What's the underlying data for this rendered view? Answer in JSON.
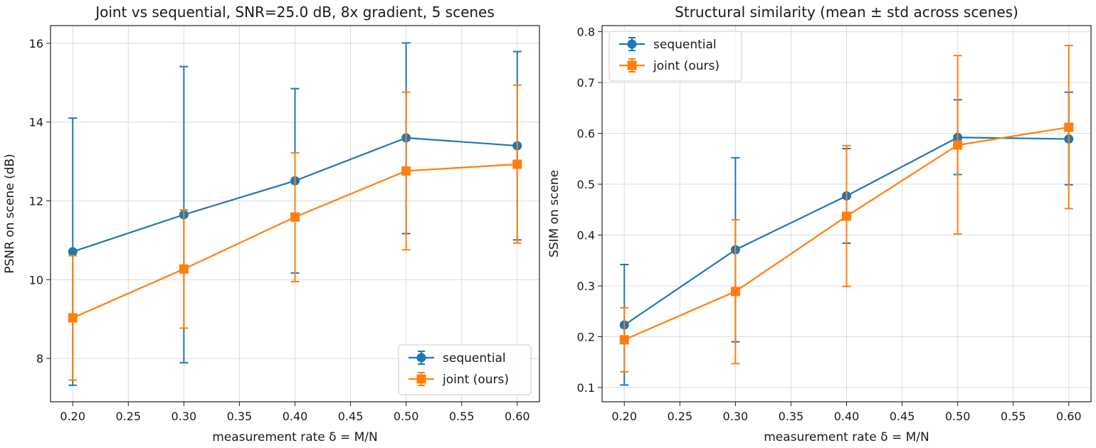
{
  "chart_data": [
    {
      "type": "line",
      "title": "Joint vs sequential, SNR=25.0 dB, 8x gradient, 5 scenes",
      "xlabel": "measurement rate δ = M/N",
      "ylabel": "PSNR on scene (dB)",
      "xlim": [
        0.18,
        0.62
      ],
      "ylim": [
        6.9,
        16.45
      ],
      "xticks": [
        "0.20",
        "0.25",
        "0.30",
        "0.35",
        "0.40",
        "0.45",
        "0.50",
        "0.55",
        "0.60"
      ],
      "yticks": [
        "8",
        "10",
        "12",
        "14",
        "16"
      ],
      "grid": true,
      "legend_position": "lower right",
      "x": [
        0.2,
        0.3,
        0.4,
        0.5,
        0.6
      ],
      "series": [
        {
          "name": "sequential",
          "color": "#1f77b4",
          "marker": "circle",
          "values": [
            10.71,
            11.65,
            12.51,
            13.6,
            13.4
          ],
          "err_low": [
            7.32,
            7.89,
            10.17,
            11.17,
            11.01
          ],
          "err_high": [
            14.1,
            15.41,
            14.85,
            16.01,
            15.79
          ]
        },
        {
          "name": "joint (ours)",
          "color": "#ff7f0e",
          "marker": "square",
          "values": [
            9.03,
            10.27,
            11.59,
            12.76,
            12.93
          ],
          "err_low": [
            7.45,
            8.77,
            9.95,
            10.76,
            10.93
          ],
          "err_high": [
            10.61,
            11.77,
            13.22,
            14.76,
            14.94
          ]
        }
      ]
    },
    {
      "type": "line",
      "title": "Structural similarity (mean ± std across scenes)",
      "xlabel": "measurement rate δ = M/N",
      "ylabel": "SSIM on scene",
      "xlim": [
        0.18,
        0.62
      ],
      "ylim": [
        0.072,
        0.812
      ],
      "xticks": [
        "0.20",
        "0.25",
        "0.30",
        "0.35",
        "0.40",
        "0.45",
        "0.50",
        "0.55",
        "0.60"
      ],
      "yticks": [
        "0.1",
        "0.2",
        "0.3",
        "0.4",
        "0.5",
        "0.6",
        "0.7",
        "0.8"
      ],
      "grid": true,
      "legend_position": "upper left",
      "x": [
        0.2,
        0.3,
        0.4,
        0.5,
        0.6
      ],
      "series": [
        {
          "name": "sequential",
          "color": "#1f77b4",
          "marker": "circle",
          "values": [
            0.223,
            0.371,
            0.477,
            0.592,
            0.589
          ],
          "err_low": [
            0.105,
            0.19,
            0.384,
            0.519,
            0.499
          ],
          "err_high": [
            0.342,
            0.552,
            0.57,
            0.666,
            0.681
          ]
        },
        {
          "name": "joint (ours)",
          "color": "#ff7f0e",
          "marker": "square",
          "values": [
            0.194,
            0.289,
            0.437,
            0.577,
            0.612
          ],
          "err_low": [
            0.131,
            0.147,
            0.299,
            0.402,
            0.452
          ],
          "err_high": [
            0.257,
            0.43,
            0.576,
            0.753,
            0.773
          ]
        }
      ]
    }
  ]
}
